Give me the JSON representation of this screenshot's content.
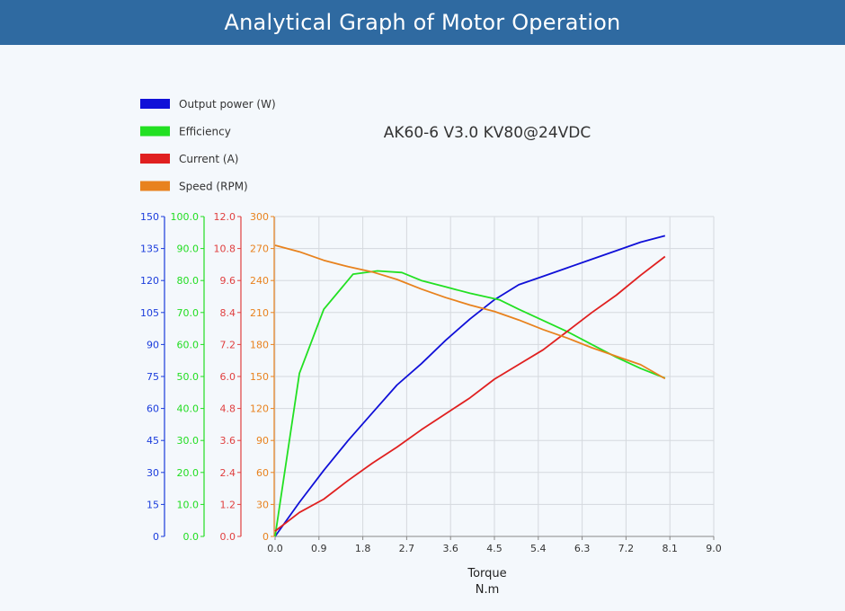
{
  "header": {
    "title": "Analytical Graph of Motor Operation"
  },
  "chart_data": {
    "type": "line",
    "title": "AK60-6 V3.0 KV80@24VDC",
    "xlabel": "Torque",
    "xunit": "N.m",
    "xlim": [
      0,
      9
    ],
    "xticks": [
      "0.0",
      "0.9",
      "1.8",
      "2.7",
      "3.6",
      "4.5",
      "5.4",
      "6.3",
      "7.2",
      "8.1",
      "9.0"
    ],
    "grid": true,
    "legend_position": "top-left",
    "axes": [
      {
        "id": "power",
        "color": "#1a3cdc",
        "ylim": [
          0,
          150
        ],
        "ticks": [
          "0",
          "15",
          "30",
          "45",
          "60",
          "75",
          "90",
          "105",
          "120",
          "135",
          "150"
        ]
      },
      {
        "id": "eff",
        "color": "#22dd22",
        "ylim": [
          0,
          100
        ],
        "ticks": [
          "0.0",
          "10.0",
          "20.0",
          "30.0",
          "40.0",
          "50.0",
          "60.0",
          "70.0",
          "80.0",
          "90.0",
          "100.0"
        ]
      },
      {
        "id": "current",
        "color": "#e04040",
        "ylim": [
          0,
          12
        ],
        "ticks": [
          "0.0",
          "1.2",
          "2.4",
          "3.6",
          "4.8",
          "6.0",
          "7.2",
          "8.4",
          "9.6",
          "10.8",
          "12.0"
        ]
      },
      {
        "id": "speed",
        "color": "#e8821e",
        "ylim": [
          0,
          300
        ],
        "ticks": [
          "0",
          "30",
          "60",
          "90",
          "120",
          "150",
          "180",
          "210",
          "240",
          "270",
          "300"
        ]
      }
    ],
    "series": [
      {
        "name": "Output power (W)",
        "axis": "power",
        "color": "#1010d8",
        "x": [
          0,
          0.5,
          1.0,
          1.5,
          2.0,
          2.5,
          3.0,
          3.5,
          4.0,
          4.5,
          5.0,
          5.5,
          6.0,
          6.5,
          7.0,
          7.5,
          8.0
        ],
        "y": [
          0,
          16,
          31,
          45,
          58,
          71,
          81,
          92,
          102,
          111,
          118,
          122,
          126,
          130,
          134,
          138,
          141
        ]
      },
      {
        "name": "Efficiency",
        "axis": "eff",
        "color": "#22e022",
        "x": [
          0,
          0.5,
          1.0,
          1.6,
          2.1,
          2.6,
          3.0,
          3.5,
          4.0,
          4.6,
          5.0,
          5.5,
          6.0,
          6.5,
          7.0,
          7.5,
          8.0
        ],
        "y": [
          0,
          51,
          71,
          82,
          83,
          82.5,
          80,
          78,
          76,
          74,
          71,
          67.5,
          64,
          60,
          56,
          52.5,
          49.5
        ]
      },
      {
        "name": "Current (A)",
        "axis": "current",
        "color": "#e02020",
        "x": [
          0,
          0.5,
          1.0,
          1.5,
          2.0,
          2.5,
          3.0,
          3.5,
          4.0,
          4.5,
          5.0,
          5.5,
          6.0,
          6.5,
          7.0,
          7.5,
          8.0
        ],
        "y": [
          0.2,
          0.9,
          1.4,
          2.1,
          2.75,
          3.35,
          4.0,
          4.6,
          5.2,
          5.9,
          6.45,
          7.0,
          7.7,
          8.4,
          9.05,
          9.8,
          10.5
        ]
      },
      {
        "name": "Speed (RPM)",
        "axis": "speed",
        "color": "#e8821e",
        "x": [
          0,
          0.5,
          1.0,
          1.5,
          2.0,
          2.5,
          3.0,
          3.5,
          4.0,
          4.5,
          5.0,
          5.5,
          6.0,
          6.5,
          7.0,
          7.5,
          8.0
        ],
        "y": [
          273,
          267,
          259,
          253,
          248,
          241,
          232,
          224,
          217,
          211,
          203,
          194,
          186,
          177,
          169,
          161,
          148
        ]
      }
    ]
  }
}
